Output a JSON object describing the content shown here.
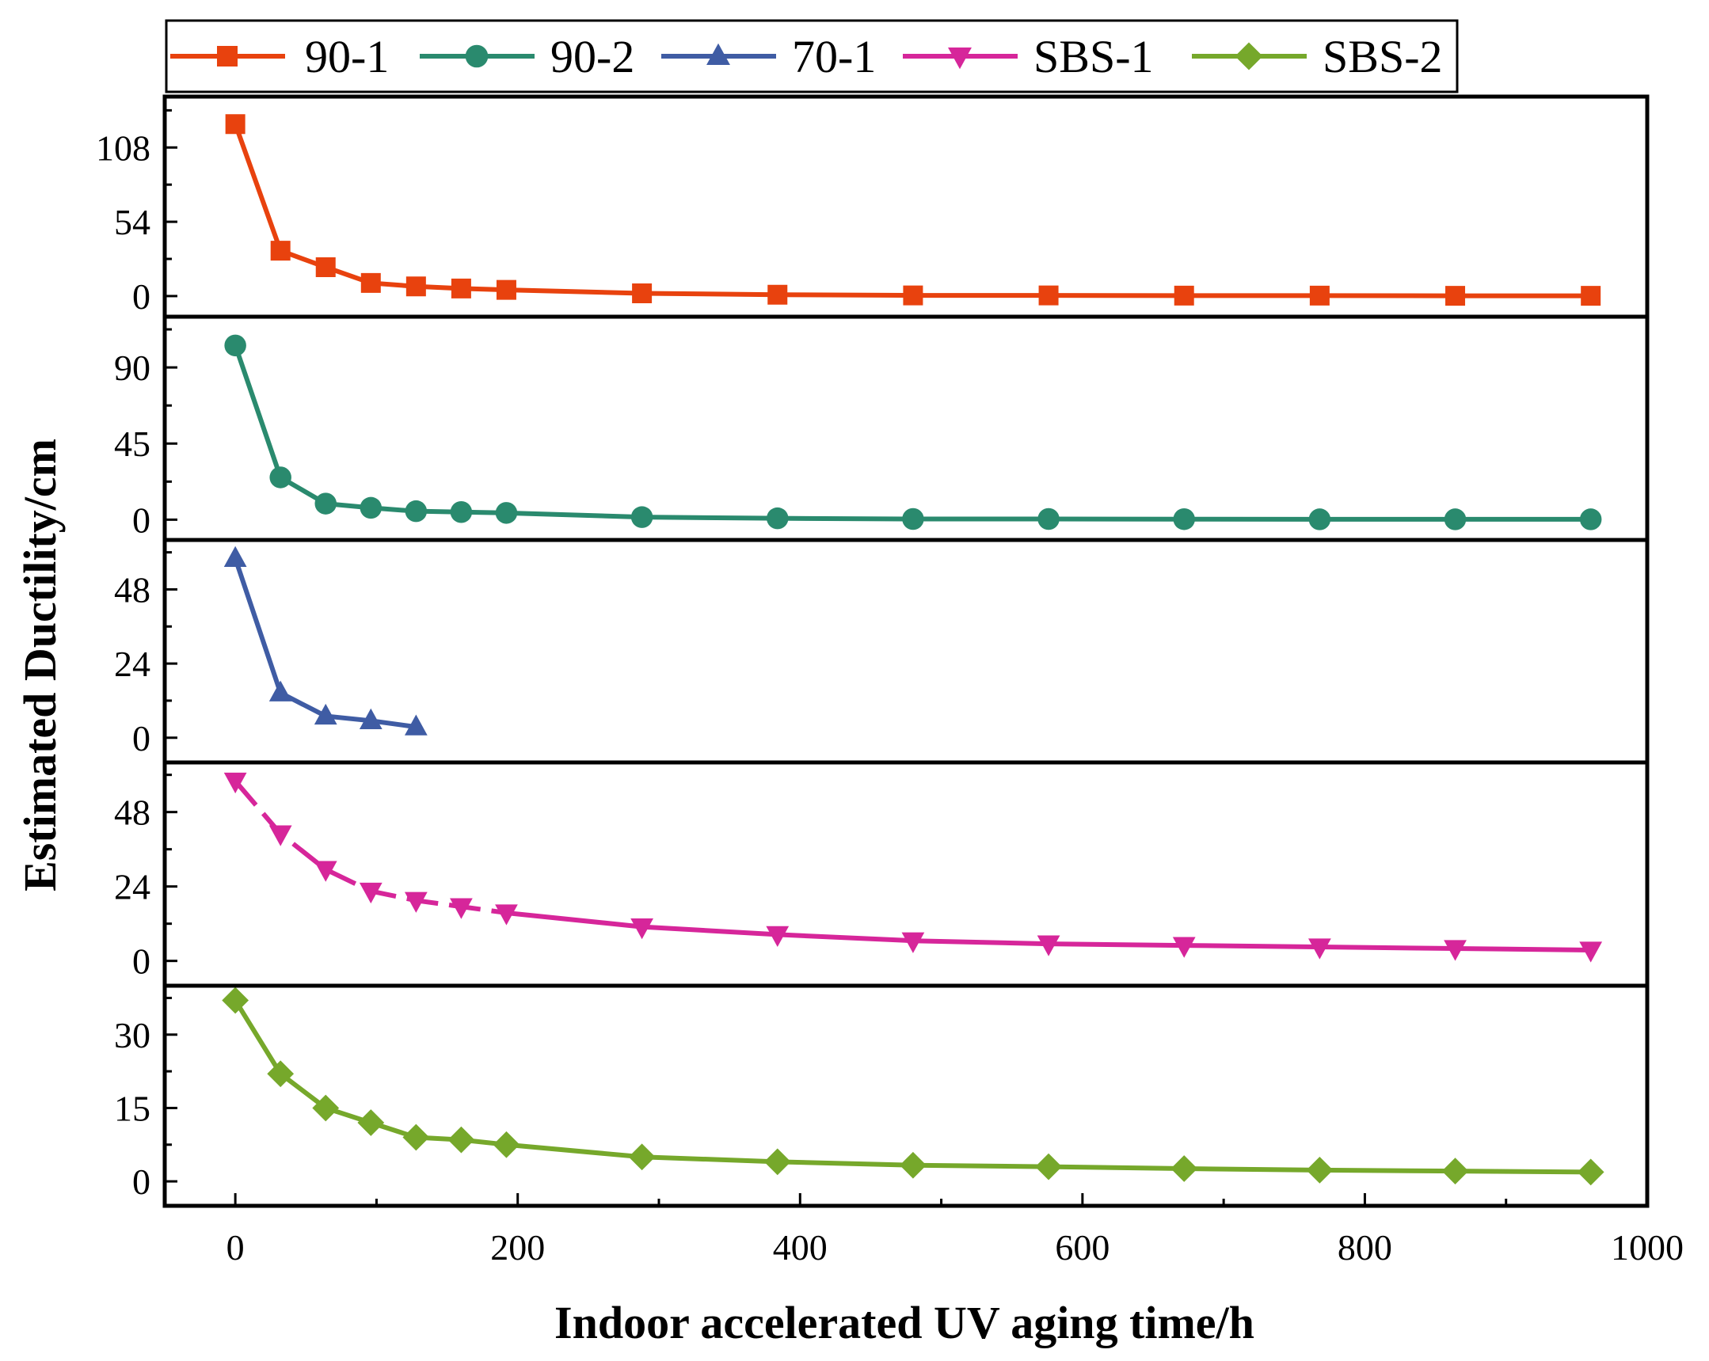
{
  "chart_data": {
    "type": "line",
    "layout": "stacked-panels",
    "xlabel": "Indoor accelerated UV aging time/h",
    "ylabel": "Estimated Ductility/cm",
    "xlim": [
      -50,
      1000
    ],
    "xticks": [
      0,
      200,
      400,
      600,
      800,
      1000
    ],
    "xtick_labels": [
      "0",
      "200",
      "400",
      "600",
      "800",
      "1000"
    ],
    "legend_position": "top",
    "series": [
      {
        "name": "90-1",
        "color": "#E8420E",
        "marker": "square",
        "ylim": [
          -15,
          145
        ],
        "yticks": [
          0,
          54,
          108
        ],
        "ytick_labels": [
          "0",
          "54",
          "108"
        ],
        "x": [
          0,
          32,
          64,
          96,
          128,
          160,
          192,
          288,
          384,
          480,
          576,
          672,
          768,
          864,
          960
        ],
        "y": [
          125,
          33,
          21,
          9.5,
          7,
          5.5,
          4.5,
          2,
          1,
          0.5,
          0.5,
          0.3,
          0.3,
          0.2,
          0.2
        ]
      },
      {
        "name": "90-2",
        "color": "#2A8A6E",
        "marker": "circle",
        "ylim": [
          -12,
          120
        ],
        "yticks": [
          0,
          45,
          90
        ],
        "ytick_labels": [
          "0",
          "45",
          "90"
        ],
        "x": [
          0,
          32,
          64,
          96,
          128,
          160,
          192,
          288,
          384,
          480,
          576,
          672,
          768,
          864,
          960
        ],
        "y": [
          103,
          25,
          9.5,
          7,
          5,
          4.5,
          4,
          1.5,
          0.8,
          0.4,
          0.4,
          0.3,
          0.2,
          0.2,
          0.2
        ]
      },
      {
        "name": "70-1",
        "color": "#3F5CA4",
        "marker": "triangle-up",
        "ylim": [
          -8,
          64
        ],
        "yticks": [
          0,
          24,
          48
        ],
        "ytick_labels": [
          "0",
          "24",
          "48"
        ],
        "x": [
          0,
          32,
          64,
          96,
          128
        ],
        "y": [
          58,
          14.5,
          7,
          5.5,
          3.5
        ]
      },
      {
        "name": "SBS-1",
        "color": "#D6269A",
        "marker": "triangle-down",
        "line_style": "dashed-start",
        "ylim": [
          -8,
          64
        ],
        "yticks": [
          0,
          24,
          48
        ],
        "ytick_labels": [
          "0",
          "24",
          "48"
        ],
        "x": [
          0,
          32,
          64,
          96,
          128,
          160,
          192,
          288,
          384,
          480,
          576,
          672,
          768,
          864,
          960
        ],
        "y": [
          58,
          41,
          29.5,
          22.5,
          19.5,
          17.5,
          15.5,
          11,
          8.5,
          6.5,
          5.5,
          5,
          4.5,
          4,
          3.5
        ]
      },
      {
        "name": "SBS-2",
        "color": "#76A82B",
        "marker": "diamond",
        "ylim": [
          -5,
          40
        ],
        "yticks": [
          0,
          15,
          30
        ],
        "ytick_labels": [
          "0",
          "15",
          "30"
        ],
        "x": [
          0,
          32,
          64,
          96,
          128,
          160,
          192,
          288,
          384,
          480,
          576,
          672,
          768,
          864,
          960
        ],
        "y": [
          37,
          22,
          15,
          12,
          9,
          8.5,
          7.5,
          5,
          4,
          3.3,
          3,
          2.6,
          2.3,
          2.1,
          1.9
        ]
      }
    ]
  }
}
